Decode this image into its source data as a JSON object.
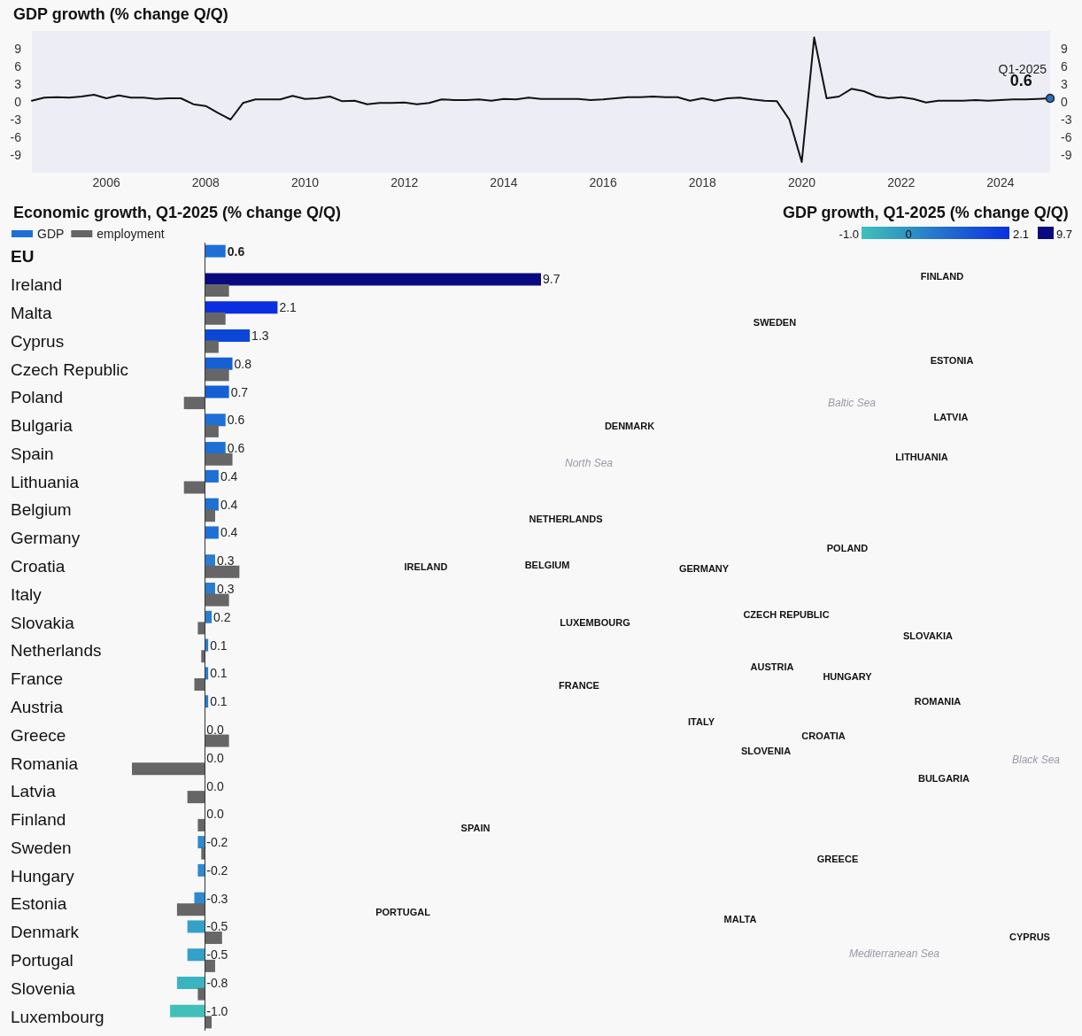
{
  "chart_data": [
    {
      "type": "line",
      "title": "GDP growth (% change Q/Q)",
      "x": [
        2004.5,
        2004.75,
        2005,
        2005.25,
        2005.5,
        2005.75,
        2006,
        2006.25,
        2006.5,
        2006.75,
        2007,
        2007.25,
        2007.5,
        2007.75,
        2008,
        2008.25,
        2008.5,
        2008.75,
        2009,
        2009.25,
        2009.5,
        2009.75,
        2010,
        2010.25,
        2010.5,
        2010.75,
        2011,
        2011.25,
        2011.5,
        2011.75,
        2012,
        2012.25,
        2012.5,
        2012.75,
        2013,
        2013.25,
        2013.5,
        2013.75,
        2014,
        2014.25,
        2014.5,
        2014.75,
        2015,
        2015.25,
        2015.5,
        2015.75,
        2016,
        2016.25,
        2016.5,
        2016.75,
        2017,
        2017.25,
        2017.5,
        2017.75,
        2018,
        2018.25,
        2018.5,
        2018.75,
        2019,
        2019.25,
        2019.5,
        2019.75,
        2020,
        2020.25,
        2020.5,
        2020.75,
        2021,
        2021.25,
        2021.5,
        2021.75,
        2022,
        2022.25,
        2022.5,
        2022.75,
        2023,
        2023.25,
        2023.5,
        2023.75,
        2024,
        2024.25,
        2024.5,
        2024.75,
        2025
      ],
      "series": [
        {
          "color": "#111111",
          "values": [
            0.2,
            0.7,
            0.8,
            0.7,
            0.9,
            1.2,
            0.6,
            1.1,
            0.7,
            0.7,
            0.5,
            0.6,
            0.6,
            -0.4,
            -0.7,
            -1.9,
            -3.0,
            -0.2,
            0.4,
            0.4,
            0.4,
            1.0,
            0.5,
            0.6,
            0.9,
            0.1,
            0.2,
            -0.4,
            -0.2,
            -0.2,
            -0.1,
            -0.4,
            -0.2,
            0.4,
            0.3,
            0.3,
            0.4,
            0.2,
            0.5,
            0.4,
            0.7,
            0.5,
            0.5,
            0.5,
            0.5,
            0.3,
            0.4,
            0.6,
            0.8,
            0.8,
            0.9,
            0.8,
            0.8,
            0.2,
            0.6,
            0.2,
            0.6,
            0.7,
            0.4,
            0.2,
            0.1,
            -3.0,
            -10.2,
            10.9,
            0.6,
            0.9,
            2.2,
            1.8,
            0.9,
            0.6,
            0.8,
            0.5,
            -0.1,
            0.2,
            0.2,
            0.2,
            0.3,
            0.2,
            0.3,
            0.4,
            0.4,
            0.5,
            0.6
          ],
          "value_labels": [
            null,
            null,
            null,
            null,
            null,
            null,
            null,
            null,
            null,
            null,
            null,
            null,
            null,
            null,
            null,
            null,
            null,
            null,
            null,
            null,
            null,
            null,
            null,
            null,
            null,
            null,
            null,
            null,
            null,
            null,
            null,
            null,
            null,
            null,
            null,
            null,
            null,
            null,
            null,
            null,
            null,
            null,
            null,
            null,
            null,
            null,
            null,
            null,
            null,
            null,
            null,
            null,
            null,
            null,
            null,
            null,
            null,
            null,
            null,
            null,
            null,
            null,
            null,
            null,
            null,
            null,
            null,
            null,
            null,
            null,
            null,
            null,
            null,
            null,
            null,
            null,
            null,
            null,
            null,
            null,
            null,
            null,
            "0.6"
          ]
        }
      ],
      "annotations": [
        {
          "text": "Q1-2025",
          "x": 2025,
          "y": 0.6
        }
      ],
      "xlim": [
        2004.5,
        2025
      ],
      "xticks": [
        2006,
        2008,
        2010,
        2012,
        2014,
        2016,
        2018,
        2020,
        2022,
        2024
      ],
      "ylim": [
        -12,
        12
      ],
      "yticks": [
        -9,
        -6,
        -3,
        0,
        3,
        6,
        9
      ],
      "y2lim": [
        -12,
        12
      ],
      "y2ticks": [
        -9,
        -6,
        -3,
        0,
        3,
        6,
        9
      ],
      "grid": false,
      "legend": false,
      "line_style": "solid"
    },
    {
      "type": "bar",
      "title": "Economic growth, Q1-2025 (% change Q/Q)",
      "orientation": "horizontal",
      "categories": [
        "EU",
        "Ireland",
        "Malta",
        "Cyprus",
        "Czech Republic",
        "Poland",
        "Bulgaria",
        "Spain",
        "Lithuania",
        "Belgium",
        "Germany",
        "Croatia",
        "Italy",
        "Slovakia",
        "Netherlands",
        "France",
        "Austria",
        "Greece",
        "Romania",
        "Latvia",
        "Finland",
        "Sweden",
        "Hungary",
        "Estonia",
        "Denmark",
        "Portugal",
        "Slovenia",
        "Luxembourg"
      ],
      "series": [
        {
          "name": "GDP",
          "color": "#1e6fd6",
          "values": [
            0.6,
            9.7,
            2.1,
            1.3,
            0.8,
            0.7,
            0.6,
            0.6,
            0.4,
            0.4,
            0.4,
            0.3,
            0.3,
            0.2,
            0.1,
            0.1,
            0.1,
            0.0,
            0.0,
            0.0,
            0.0,
            -0.2,
            -0.2,
            -0.3,
            -0.5,
            -0.5,
            -0.8,
            -1.0
          ],
          "colors": [
            "#1e6fd6",
            "#0a0a80",
            "#0b2fe0",
            "#0d47d8",
            "#1560d4",
            "#1560d4",
            "#1e6fd6",
            "#1e6fd6",
            "#1e6fd6",
            "#1e6fd6",
            "#1e6fd6",
            "#2a7cd0",
            "#2a7cd0",
            "#2a7cd0",
            "#2a7cd0",
            "#2a7cd0",
            "#2a7cd0",
            "#2a7cd0",
            "#2a7cd0",
            "#2a7cd0",
            "#2a7cd0",
            "#2e8ad0",
            "#2e8ad0",
            "#2e8ad0",
            "#35a0c8",
            "#35a0c8",
            "#3ab5c0",
            "#40c0b8"
          ],
          "value_labels": [
            "0.6",
            "9.7",
            "2.1",
            "1.3",
            "0.8",
            "0.7",
            "0.6",
            "0.6",
            "0.4",
            "0.4",
            "0.4",
            "0.3",
            "0.3",
            "0.2",
            "0.1",
            "0.1",
            "0.1",
            "0.0",
            "0.0",
            "0.0",
            "0.0",
            "-0.2",
            "-0.2",
            "-0.3",
            "-0.5",
            "-0.5",
            "-0.8",
            "-1.0"
          ]
        },
        {
          "name": "employment",
          "color": "#666666",
          "values": [
            null,
            0.7,
            0.6,
            0.4,
            0.7,
            -0.6,
            0.4,
            0.8,
            -0.6,
            0.3,
            0.0,
            1.0,
            0.7,
            -0.2,
            -0.1,
            -0.3,
            0.0,
            0.7,
            -2.1,
            -0.5,
            -0.2,
            -0.1,
            0.0,
            -0.8,
            0.5,
            0.3,
            -0.2,
            0.2
          ]
        }
      ],
      "grid": false,
      "legend": "top left",
      "tick_labels": "y"
    },
    {
      "type": "other",
      "title": "GDP growth, Q1-2025 (% change Q/Q)",
      "colors": [
        "#40c0b8",
        "#0b2fe0",
        "#0a0a80"
      ],
      "annotations": [
        "-1.0",
        "0",
        "2.1",
        "9.7",
        "FINLAND",
        "SWEDEN",
        "ESTONIA",
        "LATVIA",
        "LITHUANIA",
        "DENMARK",
        "NETHERLANDS",
        "BELGIUM",
        "IRELAND",
        "GERMANY",
        "POLAND",
        "LUXEMBOURG",
        "CZECH REPUBLIC",
        "SLOVAKIA",
        "AUSTRIA",
        "HUNGARY",
        "FRANCE",
        "ROMANIA",
        "ITALY",
        "SLOVENIA",
        "CROATIA",
        "BULGARIA",
        "SPAIN",
        "GREECE",
        "PORTUGAL",
        "MALTA",
        "CYPRUS",
        "Baltic Sea",
        "North Sea",
        "Black Sea",
        "Mediterranean Sea"
      ]
    }
  ]
}
